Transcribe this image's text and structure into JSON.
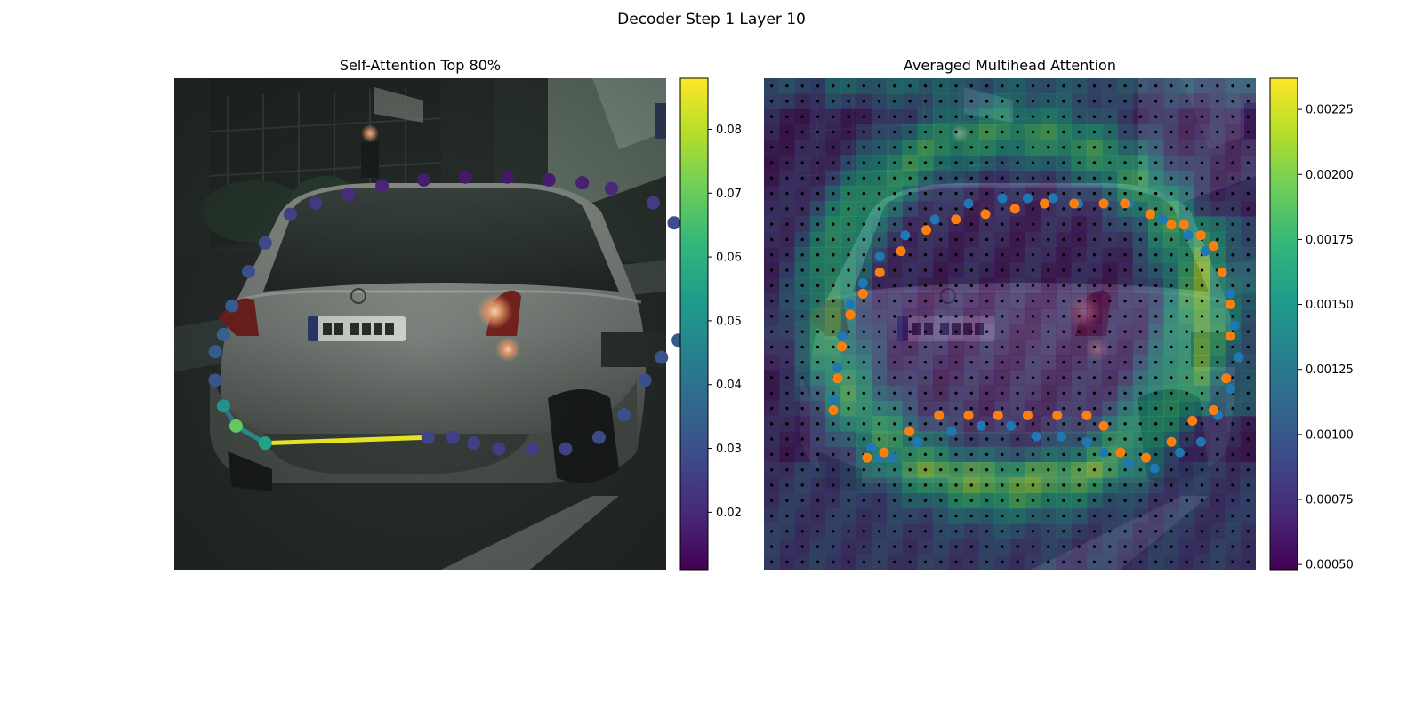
{
  "figure": {
    "suptitle": "Decoder Step 1 Layer 10"
  },
  "colormap": {
    "name": "viridis",
    "stops": [
      "#440154",
      "#482878",
      "#3e4989",
      "#31688e",
      "#26828e",
      "#1f9e89",
      "#35b779",
      "#6ece58",
      "#b5de2b",
      "#fde725"
    ]
  },
  "icons": [
    "car-photo"
  ],
  "chart_data": [
    {
      "type": "scatter",
      "title": "Self-Attention Top 80%",
      "xlabel": "",
      "ylabel": "",
      "background": "street scene photo of a silver hatchback car, rear view",
      "colorbar": {
        "vmin": 0.011,
        "vmax": 0.088,
        "ticks": [
          0.02,
          0.03,
          0.04,
          0.05,
          0.06,
          0.07,
          0.08
        ]
      },
      "points": [
        {
          "x": 0.51,
          "y": 0.92,
          "v": 0.027
        },
        {
          "x": 0.57,
          "y": 0.92,
          "v": 0.026
        },
        {
          "x": 0.62,
          "y": 0.94,
          "v": 0.026
        },
        {
          "x": 0.68,
          "y": 0.96,
          "v": 0.025
        },
        {
          "x": 0.76,
          "y": 0.96,
          "v": 0.025
        },
        {
          "x": 0.84,
          "y": 0.96,
          "v": 0.026
        },
        {
          "x": 0.92,
          "y": 0.92,
          "v": 0.028
        },
        {
          "x": 0.98,
          "y": 0.84,
          "v": 0.03
        },
        {
          "x": 1.03,
          "y": 0.72,
          "v": 0.03
        },
        {
          "x": 1.07,
          "y": 0.64,
          "v": 0.031
        },
        {
          "x": 1.11,
          "y": 0.58,
          "v": 0.033
        },
        {
          "x": 1.14,
          "y": 0.53,
          "v": 0.036
        },
        {
          "x": 1.15,
          "y": 0.47,
          "v": 0.038
        },
        {
          "x": 1.15,
          "y": 0.41,
          "v": 0.036
        },
        {
          "x": 1.15,
          "y": 0.33,
          "v": 0.034
        },
        {
          "x": 1.14,
          "y": 0.26,
          "v": 0.033
        },
        {
          "x": 1.1,
          "y": 0.17,
          "v": 0.029
        },
        {
          "x": 1.05,
          "y": 0.1,
          "v": 0.025
        },
        {
          "x": 0.95,
          "y": 0.05,
          "v": 0.02
        },
        {
          "x": 0.88,
          "y": 0.03,
          "v": 0.018
        },
        {
          "x": 0.8,
          "y": 0.02,
          "v": 0.017
        },
        {
          "x": 0.7,
          "y": 0.01,
          "v": 0.016
        },
        {
          "x": 0.6,
          "y": 0.01,
          "v": 0.016
        },
        {
          "x": 0.5,
          "y": 0.02,
          "v": 0.017
        },
        {
          "x": 0.4,
          "y": 0.04,
          "v": 0.019
        },
        {
          "x": 0.32,
          "y": 0.07,
          "v": 0.021
        },
        {
          "x": 0.24,
          "y": 0.1,
          "v": 0.024
        },
        {
          "x": 0.18,
          "y": 0.14,
          "v": 0.026
        },
        {
          "x": 0.12,
          "y": 0.24,
          "v": 0.028
        },
        {
          "x": 0.08,
          "y": 0.34,
          "v": 0.03
        },
        {
          "x": 0.04,
          "y": 0.46,
          "v": 0.033
        },
        {
          "x": 0.02,
          "y": 0.56,
          "v": 0.035
        },
        {
          "x": 0.0,
          "y": 0.62,
          "v": 0.033
        },
        {
          "x": 0.0,
          "y": 0.72,
          "v": 0.031
        },
        {
          "x": 0.02,
          "y": 0.81,
          "v": 0.05
        },
        {
          "x": 0.05,
          "y": 0.88,
          "v": 0.069
        },
        {
          "x": 0.12,
          "y": 0.94,
          "v": 0.055
        }
      ],
      "edges": [
        {
          "from": 34,
          "to": 35,
          "v": 0.04
        },
        {
          "from": 35,
          "to": 36,
          "v": 0.048
        },
        {
          "from": 36,
          "to": 0,
          "v": 0.085
        }
      ]
    },
    {
      "type": "heatmap",
      "title": "Averaged Multihead Attention",
      "xlabel": "",
      "ylabel": "",
      "background": "street scene photo of a silver hatchback car, rear view",
      "grid_size": 32,
      "colorbar": {
        "vmin": 0.00048,
        "vmax": 0.00237,
        "ticks": [
          0.0005,
          0.00075,
          0.001,
          0.00125,
          0.0015,
          0.00175,
          0.002,
          0.00225
        ],
        "tick_labels": [
          "0.00050",
          "0.00075",
          "0.00100",
          "0.00125",
          "0.00150",
          "0.00175",
          "0.00200",
          "0.00225"
        ]
      },
      "series": [
        {
          "color": "#1f77b4",
          "points": [
            [
              0.17,
              0.37
            ],
            [
              0.19,
              0.39
            ],
            [
              0.22,
              0.39
            ],
            [
              0.28,
              0.36
            ],
            [
              0.36,
              0.34
            ],
            [
              0.43,
              0.33
            ],
            [
              0.5,
              0.33
            ],
            [
              0.56,
              0.35
            ],
            [
              0.62,
              0.35
            ],
            [
              0.68,
              0.36
            ],
            [
              0.72,
              0.38
            ],
            [
              0.78,
              0.4
            ],
            [
              0.84,
              0.41
            ],
            [
              0.9,
              0.38
            ],
            [
              0.95,
              0.36
            ],
            [
              0.99,
              0.31
            ],
            [
              1.02,
              0.26
            ],
            [
              1.04,
              0.2
            ],
            [
              1.03,
              0.14
            ],
            [
              1.02,
              0.08
            ],
            [
              1.0,
              0.04
            ],
            [
              0.96,
              0.0
            ],
            [
              0.92,
              -0.03
            ],
            [
              0.86,
              -0.06
            ],
            [
              0.78,
              -0.09
            ],
            [
              0.72,
              -0.09
            ],
            [
              0.66,
              -0.09
            ],
            [
              0.6,
              -0.1
            ],
            [
              0.54,
              -0.1
            ],
            [
              0.48,
              -0.1
            ],
            [
              0.4,
              -0.09
            ],
            [
              0.32,
              -0.06
            ],
            [
              0.25,
              -0.03
            ],
            [
              0.19,
              0.01
            ],
            [
              0.15,
              0.06
            ],
            [
              0.12,
              0.1
            ],
            [
              0.1,
              0.16
            ],
            [
              0.09,
              0.22
            ],
            [
              0.08,
              0.28
            ]
          ]
        },
        {
          "color": "#ff7f0e",
          "points": [
            [
              0.16,
              0.39
            ],
            [
              0.2,
              0.38
            ],
            [
              0.26,
              0.34
            ],
            [
              0.33,
              0.31
            ],
            [
              0.4,
              0.31
            ],
            [
              0.47,
              0.31
            ],
            [
              0.54,
              0.31
            ],
            [
              0.61,
              0.31
            ],
            [
              0.68,
              0.31
            ],
            [
              0.72,
              0.33
            ],
            [
              0.76,
              0.38
            ],
            [
              0.82,
              0.39
            ],
            [
              0.88,
              0.36
            ],
            [
              0.93,
              0.32
            ],
            [
              0.98,
              0.3
            ],
            [
              1.01,
              0.24
            ],
            [
              1.02,
              0.16
            ],
            [
              1.02,
              0.1
            ],
            [
              1.0,
              0.04
            ],
            [
              0.98,
              -0.01
            ],
            [
              0.95,
              -0.03
            ],
            [
              0.91,
              -0.05
            ],
            [
              0.88,
              -0.05
            ],
            [
              0.83,
              -0.07
            ],
            [
              0.77,
              -0.09
            ],
            [
              0.72,
              -0.09
            ],
            [
              0.65,
              -0.09
            ],
            [
              0.58,
              -0.09
            ],
            [
              0.51,
              -0.08
            ],
            [
              0.44,
              -0.07
            ],
            [
              0.37,
              -0.06
            ],
            [
              0.3,
              -0.04
            ],
            [
              0.24,
              0.0
            ],
            [
              0.19,
              0.04
            ],
            [
              0.15,
              0.08
            ],
            [
              0.12,
              0.12
            ],
            [
              0.1,
              0.18
            ],
            [
              0.09,
              0.24
            ],
            [
              0.08,
              0.3
            ]
          ]
        }
      ]
    }
  ]
}
